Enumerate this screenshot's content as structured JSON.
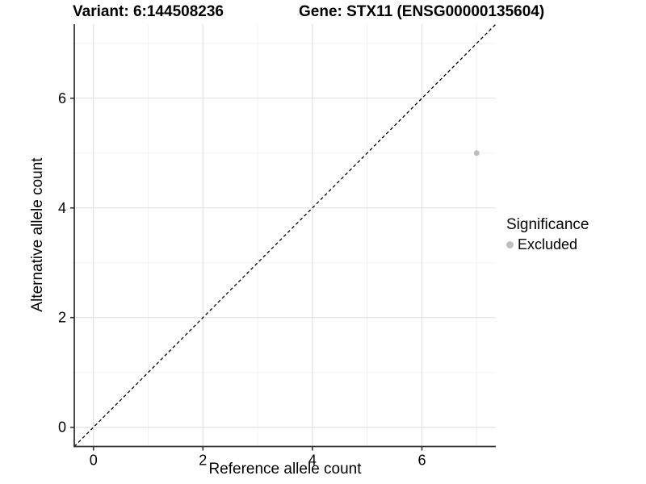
{
  "figure": {
    "title_variant": "Variant: 6:144508236",
    "title_gene": "Gene: STX11 (ENSG00000135604)"
  },
  "chart_data": {
    "type": "scatter",
    "title": "Variant: 6:144508236    Gene: STX11 (ENSG00000135604)",
    "xlabel": "Reference allele count",
    "ylabel": "Alternative allele count",
    "xlim": [
      -0.35,
      7.35
    ],
    "ylim": [
      -0.35,
      7.35
    ],
    "x_ticks": [
      0,
      2,
      4,
      6
    ],
    "y_ticks": [
      0,
      2,
      4,
      6
    ],
    "x_minor_gridlines": [
      1,
      3,
      5,
      7
    ],
    "y_minor_gridlines": [
      1,
      3,
      5,
      7
    ],
    "grid": true,
    "points": [
      {
        "x": 7,
        "y": 5,
        "series": "Excluded",
        "color": "#bebebe"
      }
    ],
    "identity_line": {
      "style": "dashed",
      "color": "#000000",
      "from": [
        -0.35,
        -0.35
      ],
      "to": [
        7.35,
        7.35
      ]
    },
    "legend": {
      "position": "right",
      "title": "Significance",
      "items": [
        {
          "label": "Excluded",
          "color": "#bebebe"
        }
      ]
    }
  },
  "colors": {
    "background": "#ffffff",
    "major_grid": "#e4e4e4",
    "minor_grid": "#f2f2f2",
    "axis_line": "#333333",
    "tick_mark": "#333333",
    "text": "#000000",
    "point_gray": "#bebebe"
  }
}
